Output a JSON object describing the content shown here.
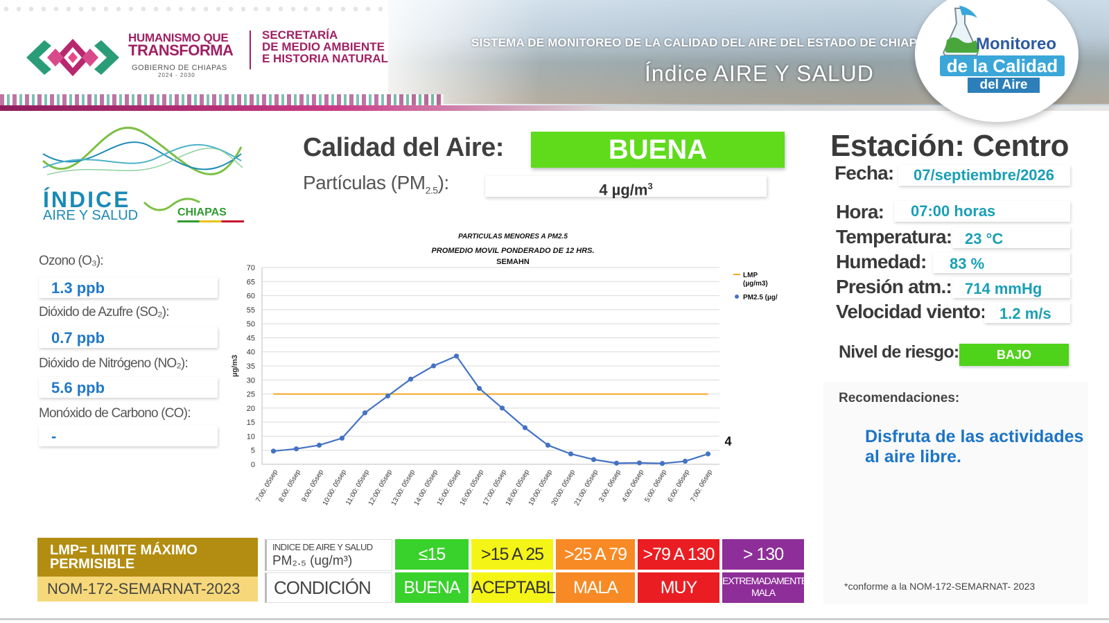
{
  "header": {
    "gov_line1": "HUMANISMO QUE",
    "gov_line2": "TRANSFORMA",
    "gov_line3": "GOBIERNO DE CHIAPAS",
    "gov_line4": "2024 - 2030",
    "secretaria_lines": [
      "SECRETARÍA",
      "DE MEDIO AMBIENTE",
      "E HISTORIA NATURAL"
    ],
    "system_title": "SISTEMA DE MONITOREO DE LA CALIDAD DEL AIRE DEL ESTADO DE CHIAPAS",
    "subtitle": "Índice AIRE Y SALUD",
    "badge_line1": "Monitoreo",
    "badge_line2": "de la Calidad",
    "badge_line3": "del Aire"
  },
  "index_logo": {
    "title": "ÍNDICE",
    "subtitle": "AIRE Y SALUD",
    "region": "CHIAPAS"
  },
  "gases": [
    {
      "label": "Ozono (O₃):",
      "value": "1.3 ppb"
    },
    {
      "label": "Dióxido de Azufre  (SO₂):",
      "value": "0.7 ppb"
    },
    {
      "label": "Dióxido de Nitrógeno (NO₂):",
      "value": "5.6 ppb"
    },
    {
      "label": "Monóxido de Carbono (CO):",
      "value": "-"
    }
  ],
  "summary": {
    "calidad_label": "Calidad del Aire:",
    "calidad_value": "BUENA",
    "calidad_color": "#5fdb1c",
    "particulas_label": "Partículas (PM",
    "particulas_sub": "2.5",
    "particulas_suffix": "):",
    "particulas_value": "4 µg/m",
    "particulas_sup": "3"
  },
  "chart_data": {
    "type": "line",
    "title_line1": "PARTICULAS MENORES A PM2.5",
    "title_line2": "PROMEDIO MOVIL PONDERADO DE 12 HRS.",
    "title_line3": "SEMAHN",
    "ylabel": "µg/m3",
    "ylim": [
      0,
      70
    ],
    "yticks": [
      0,
      5,
      10,
      15,
      20,
      25,
      30,
      35,
      40,
      45,
      50,
      55,
      60,
      65,
      70
    ],
    "grid": true,
    "legend_position": "top-right",
    "categories": [
      "7:00: 05sep",
      "8:00: 05sep",
      "9:00: 05sep",
      "10:00: 05sep",
      "11:00: 05sep",
      "12:00: 05sep",
      "13:00: 05sep",
      "14:00: 05sep",
      "15:00: 05sep",
      "16:00: 05sep",
      "17:00: 05sep",
      "18:00: 05sep",
      "19:00: 05sep",
      "20:00: 05sep",
      "21:00: 05sep",
      "3:00: 06sep",
      "4:00: 06sep",
      "5:00: 06sep",
      "6:00: 06sep",
      "7:00: 06sep"
    ],
    "series": [
      {
        "name": "LMP (µg/m3)",
        "color": "#f5a623",
        "values": [
          25,
          25,
          25,
          25,
          25,
          25,
          25,
          25,
          25,
          25,
          25,
          25,
          25,
          25,
          25,
          25,
          25,
          25,
          25,
          25
        ]
      },
      {
        "name": "PM2.5  (µg/",
        "color": "#4472c4",
        "values": [
          4.7,
          5.5,
          6.8,
          9.3,
          18.3,
          24.3,
          30.3,
          35,
          38.5,
          27,
          20,
          13,
          6.8,
          3.7,
          1.7,
          0.4,
          0.5,
          0.3,
          1.1,
          3.7
        ]
      }
    ],
    "last_value_label": "4"
  },
  "legend_table": {
    "lmp_text": "LMP= LIMITE MÁXIMO PERMISIBLE",
    "nom_text": "NOM-172-SEMARNAT-2023",
    "head_index_line1": "INDICE DE AIRE Y SALUD",
    "head_index_line2": "PM₂.₅ (ug/m³)",
    "head_condition": "CONDICIÓN",
    "ranges": [
      "≤15",
      ">15 A 25",
      ">25 A 79",
      ">79 A 130",
      "> 130"
    ],
    "conditions": [
      "BUENA",
      "ACEPTABLE",
      "MALA",
      "MUY MALA",
      "EXTREMADAMENTE MALA"
    ],
    "colors": [
      "#39d12b",
      "#f4f416",
      "#f78a24",
      "#ea1d22",
      "#8e2e99"
    ]
  },
  "station": {
    "title": "Estación: Centro",
    "fecha_label": "Fecha:",
    "fecha_value": "07/septiembre/2026",
    "hora_label": "Hora:",
    "hora_value": "07:00 horas",
    "temp_label": "Temperatura:",
    "temp_value": "23 °C",
    "hum_label": "Humedad:",
    "hum_value": "83 %",
    "pres_label": "Presión atm.:",
    "pres_value": "714 mmHg",
    "viento_label": "Velocidad viento:",
    "viento_value": "1.2 m/s",
    "riesgo_label": "Nivel de riesgo:",
    "riesgo_value": "BAJO",
    "riesgo_color": "#4fd21a"
  },
  "recommendations": {
    "label": "Recomendaciones:",
    "text": "Disfruta de las actividades al aire libre.",
    "footnote": "*conforme a la NOM-172-SEMARNAT- 2023"
  }
}
